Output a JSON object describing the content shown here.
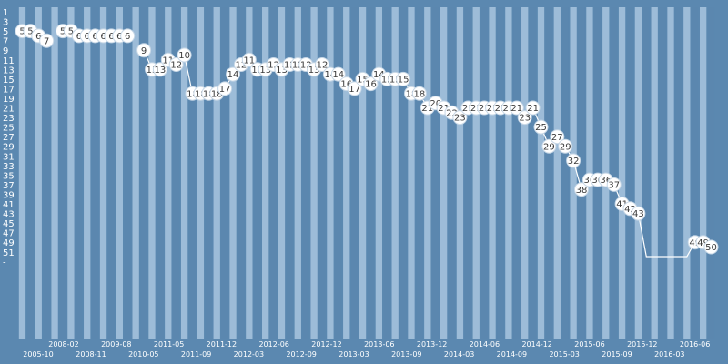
{
  "chart_data": {
    "type": "line",
    "title": "",
    "xlabel": "",
    "ylabel": "",
    "y_axis_reversed": true,
    "grid": true,
    "colors": {
      "background": "#5b88b0",
      "stripe_light": "#a9c5df",
      "stripe_dark": "#5b88b0",
      "line": "#ffffff",
      "marker_fill": "#ffffff",
      "marker_stroke": "#c7d7e6",
      "label": "#3b3b3b"
    },
    "y_ticks": [
      "1",
      "3",
      "5",
      "7",
      "9",
      "11",
      "13",
      "15",
      "17",
      "19",
      "21",
      "23",
      "25",
      "27",
      "29",
      "31",
      "33",
      "35",
      "37",
      "39",
      "41",
      "43",
      "45",
      "47",
      "49",
      "51",
      "-"
    ],
    "x_ticks_upper": [
      "2008-02",
      "2009-08",
      "2011-05",
      "2011-12",
      "2012-06",
      "2012-12",
      "2013-06",
      "2013-12",
      "2014-06",
      "2014-12",
      "2015-06",
      "2015-12",
      "2016-06"
    ],
    "x_ticks_lower": [
      "2005-10",
      "2008-11",
      "2010-05",
      "2011-09",
      "2012-03",
      "2012-09",
      "2013-03",
      "2013-09",
      "2014-03",
      "2014-09",
      "2015-03",
      "2015-09",
      "2016-03"
    ],
    "series": [
      {
        "values": [
          5,
          5,
          6,
          7,
          null,
          5,
          5,
          6,
          6,
          6,
          6,
          6,
          6,
          6,
          null,
          9,
          13,
          13,
          11,
          12,
          10,
          18,
          18,
          18,
          18,
          17,
          14,
          12,
          11,
          13,
          13,
          12,
          13,
          12,
          12,
          12,
          13,
          12,
          14,
          14,
          16,
          17,
          15,
          16,
          14,
          15,
          15,
          15,
          18,
          18,
          21,
          20,
          21,
          22,
          23,
          21,
          21,
          21,
          21,
          21,
          21,
          21,
          23,
          21,
          25,
          29,
          27,
          29,
          32,
          38,
          36,
          36,
          36,
          37,
          41,
          42,
          43,
          52,
          52,
          52,
          52,
          52,
          52,
          49,
          49,
          50
        ],
        "labels": [
          "5",
          "5",
          "6",
          "7",
          "",
          "5",
          "5",
          "6",
          "6",
          "6",
          "6",
          "6",
          "6",
          "6",
          "",
          "9",
          "13",
          "13",
          "11",
          "12",
          "10",
          "18",
          "18",
          "18",
          "18",
          "17",
          "14",
          "12",
          "11",
          "13",
          "13",
          "12",
          "13",
          "12",
          "12",
          "12",
          "13",
          "12",
          "14",
          "14",
          "16",
          "17",
          "15",
          "16",
          "14",
          "15",
          "15",
          "15",
          "18",
          "18",
          "21",
          "20",
          "21",
          "22",
          "23",
          "21",
          "21",
          "21",
          "21",
          "21",
          "21",
          "21",
          "23",
          "21",
          "25",
          "29",
          "27",
          "29",
          "32",
          "38",
          "36",
          "36",
          "36",
          "37",
          "41",
          "42",
          "43",
          "",
          "",
          "",
          "",
          "",
          "",
          "49",
          "49",
          "50"
        ]
      }
    ]
  }
}
